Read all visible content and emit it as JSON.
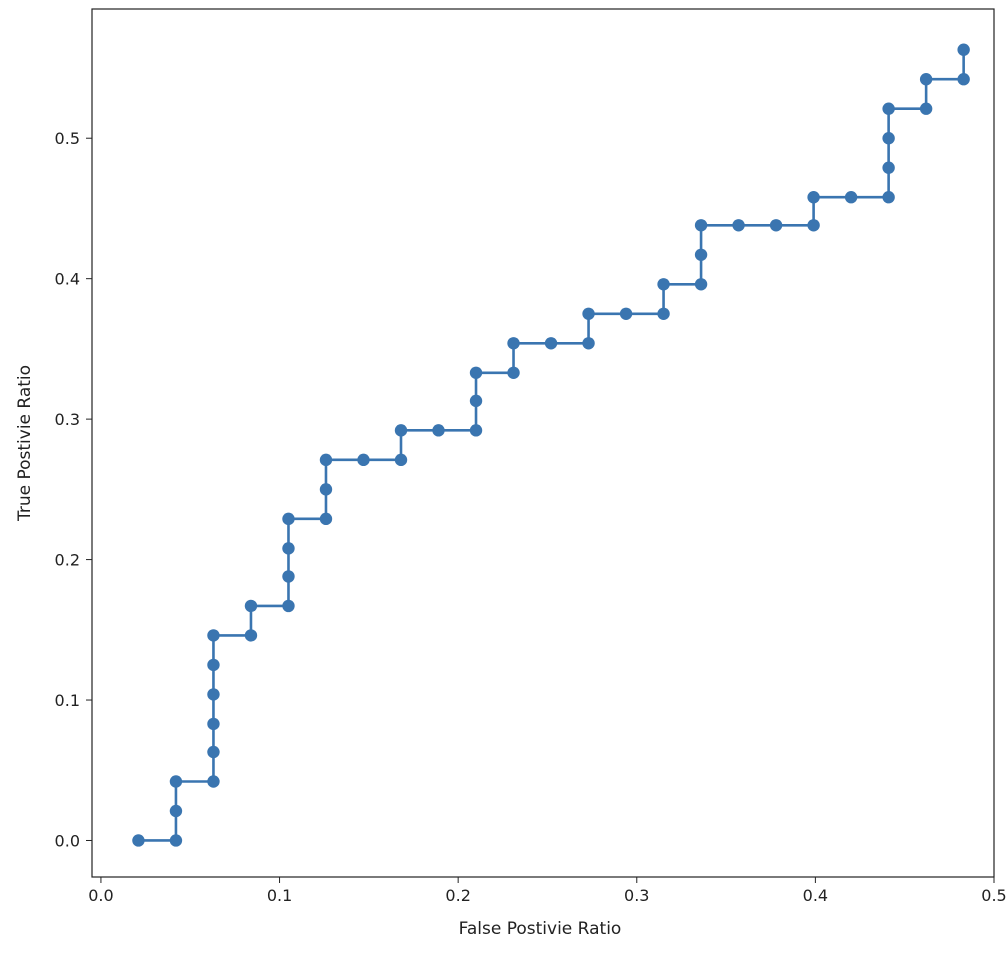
{
  "chart_data": {
    "type": "line",
    "title": "",
    "xlabel": "False Postivie Ratio",
    "ylabel": "True Postivie Ratio",
    "xlim": [
      -0.005,
      0.5
    ],
    "ylim": [
      -0.026,
      0.592
    ],
    "xticks": [
      0.0,
      0.1,
      0.2,
      0.3,
      0.4,
      0.5
    ],
    "xtick_labels": [
      "0.0",
      "0.1",
      "0.2",
      "0.3",
      "0.4",
      "0.5"
    ],
    "yticks": [
      0.0,
      0.1,
      0.2,
      0.3,
      0.4,
      0.5
    ],
    "ytick_labels": [
      "0.0",
      "0.1",
      "0.2",
      "0.3",
      "0.4",
      "0.5"
    ],
    "grid": false,
    "legend": "none",
    "series": [
      {
        "color": "#3a75b0",
        "marker": "circle",
        "x": [
          0.021,
          0.042,
          0.042,
          0.042,
          0.063,
          0.063,
          0.063,
          0.063,
          0.063,
          0.063,
          0.084,
          0.084,
          0.105,
          0.105,
          0.105,
          0.105,
          0.126,
          0.126,
          0.126,
          0.147,
          0.168,
          0.168,
          0.189,
          0.21,
          0.21,
          0.21,
          0.231,
          0.231,
          0.252,
          0.273,
          0.273,
          0.294,
          0.315,
          0.315,
          0.336,
          0.336,
          0.336,
          0.357,
          0.378,
          0.399,
          0.399,
          0.42,
          0.441,
          0.441,
          0.441,
          0.441,
          0.462,
          0.462,
          0.483,
          0.483
        ],
        "y": [
          0.0,
          0.0,
          0.021,
          0.042,
          0.042,
          0.063,
          0.083,
          0.104,
          0.125,
          0.146,
          0.146,
          0.167,
          0.167,
          0.188,
          0.208,
          0.229,
          0.229,
          0.25,
          0.271,
          0.271,
          0.271,
          0.292,
          0.292,
          0.292,
          0.313,
          0.333,
          0.333,
          0.354,
          0.354,
          0.354,
          0.375,
          0.375,
          0.375,
          0.396,
          0.396,
          0.417,
          0.438,
          0.438,
          0.438,
          0.438,
          0.458,
          0.458,
          0.458,
          0.479,
          0.5,
          0.521,
          0.521,
          0.542,
          0.542,
          0.563
        ]
      }
    ]
  }
}
